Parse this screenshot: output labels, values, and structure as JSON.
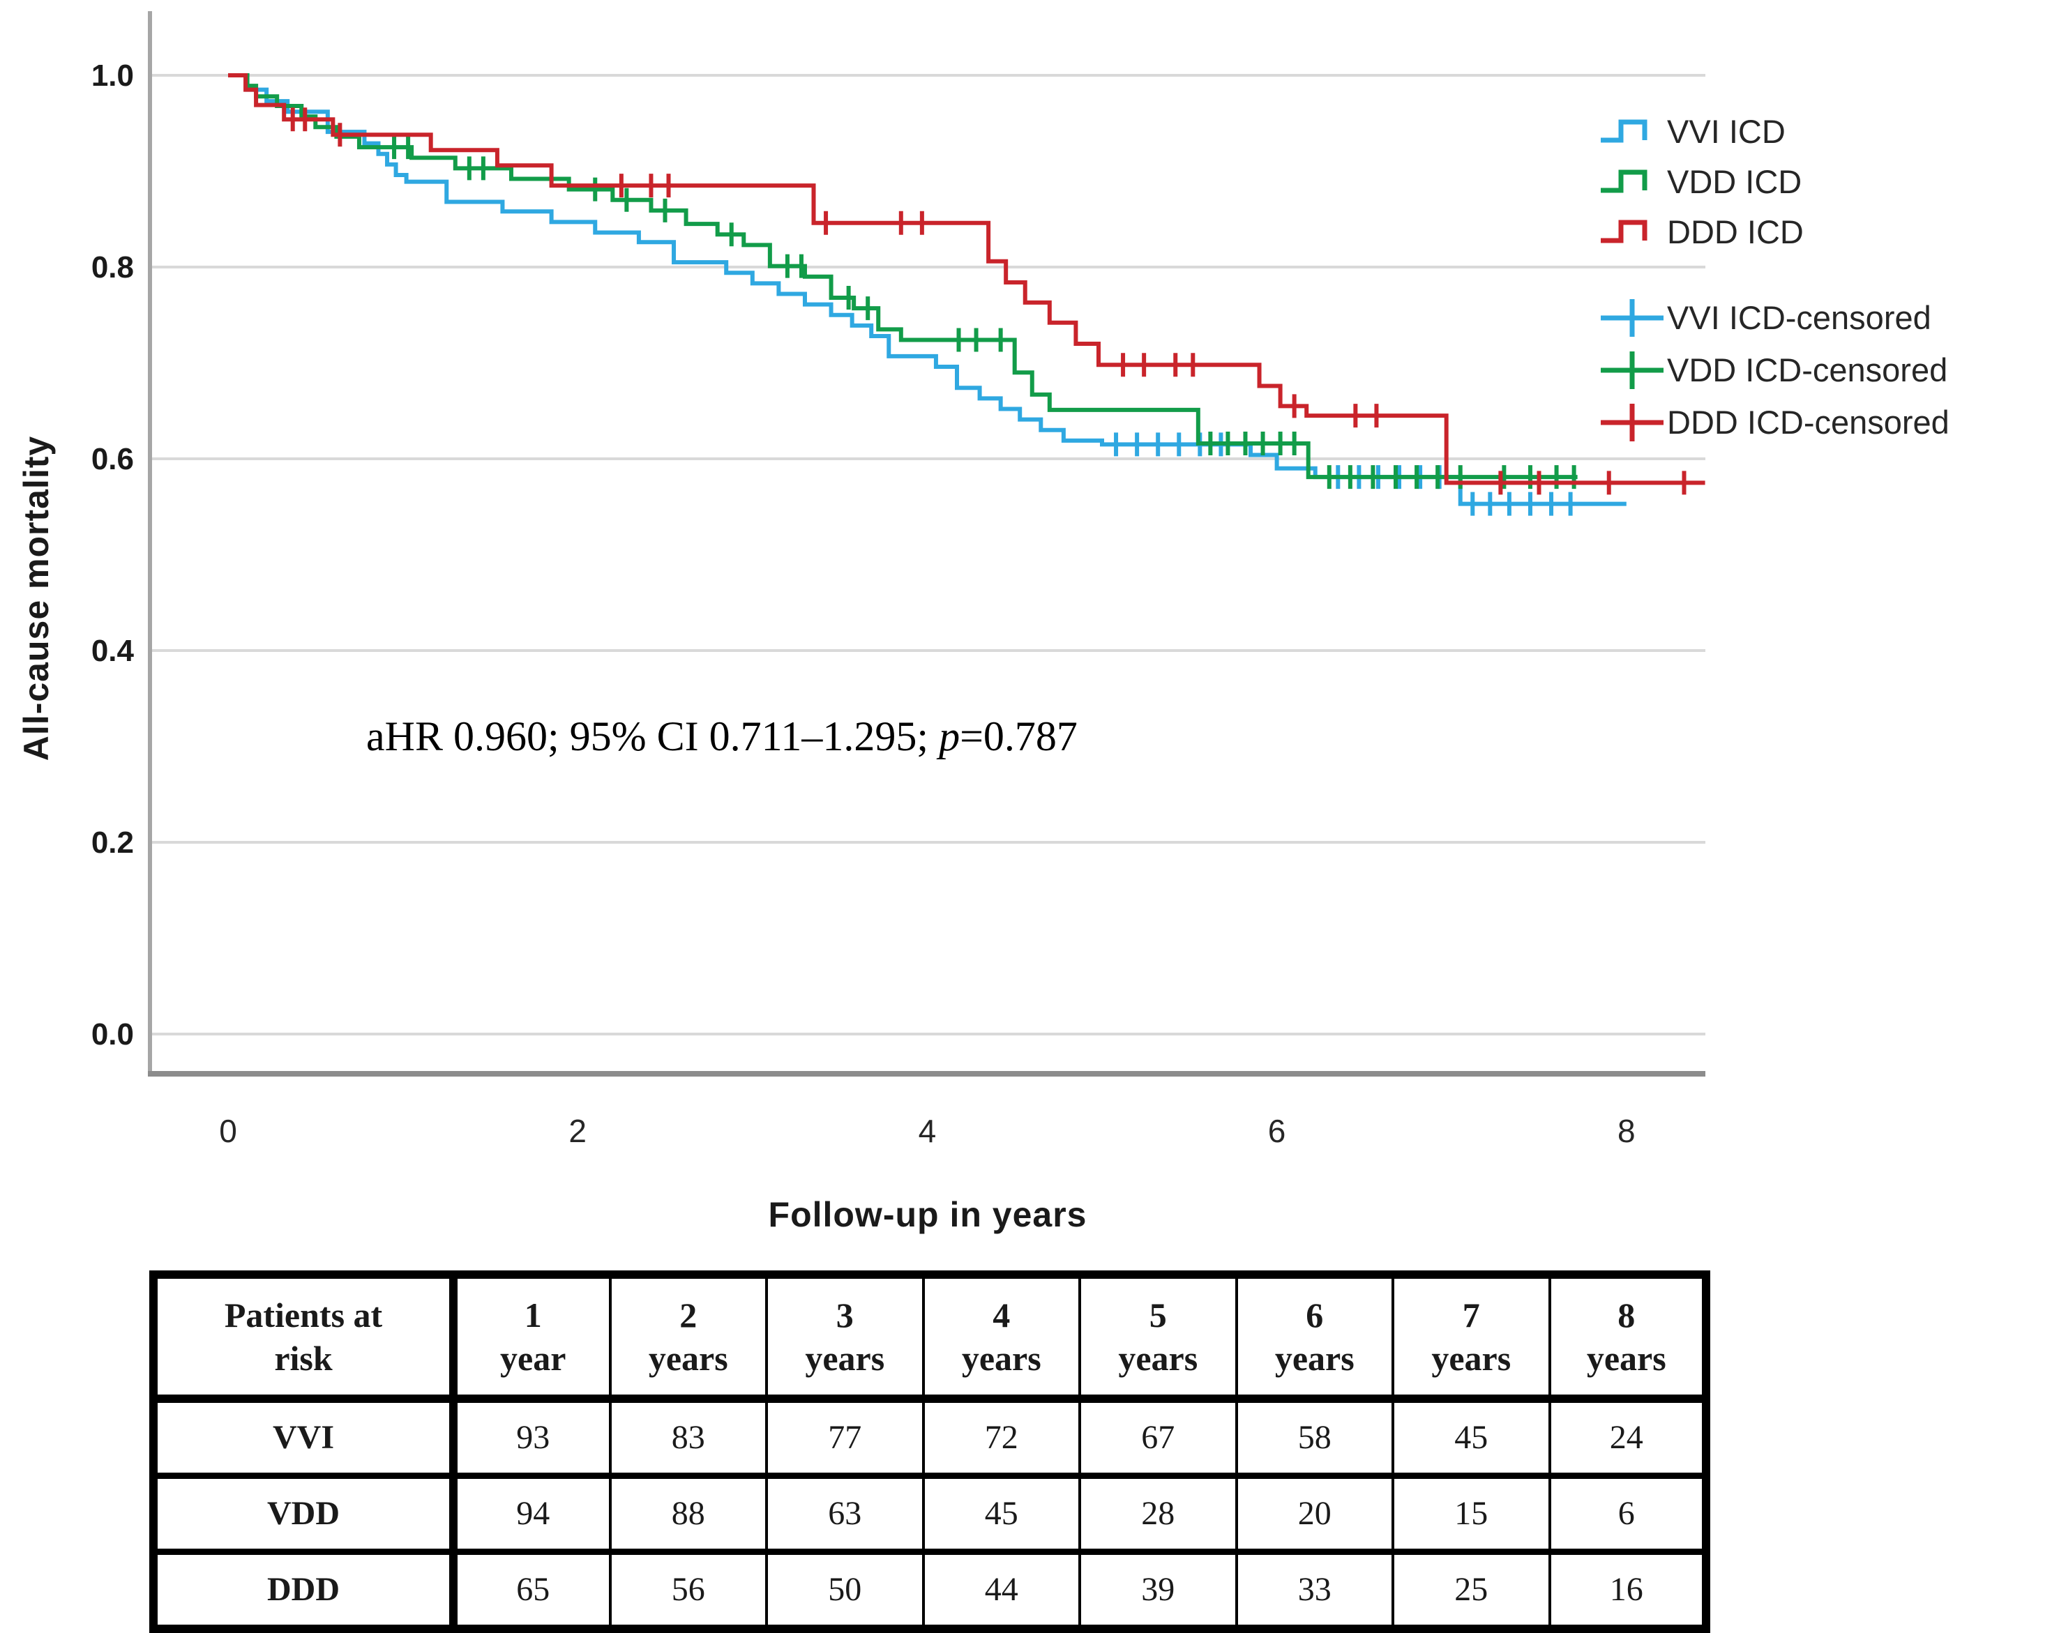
{
  "figure": {
    "ylabel": "All-cause mortality",
    "xlabel": "Follow-up in years",
    "annotation": {
      "full_text": "aHR 0.960; 95% CI 0.711–1.295; p=0.787",
      "text_before": "aHR 0.960; 95% CI 0.711–1.295; ",
      "italic": "p",
      "text_after": "=0.787"
    }
  },
  "chart_data": {
    "type": "line",
    "subtype": "kaplan-meier-step",
    "title": "",
    "xlabel": "Follow-up in years",
    "ylabel": "All-cause mortality",
    "xlim": [
      -0.45,
      8.45
    ],
    "ylim": [
      0.0,
      1.04
    ],
    "x_ticks": [
      0,
      2,
      4,
      6,
      8
    ],
    "y_ticks": [
      "1.0",
      "0.8",
      "0.6",
      "0.4",
      "0.2",
      "0.0"
    ],
    "y_tick_values": [
      1.0,
      0.8,
      0.6,
      0.4,
      0.2,
      0.0
    ],
    "grid": "horizontal-only",
    "legend_position": "right",
    "legend": [
      "VVI ICD",
      "VDD ICD",
      "DDD ICD",
      "VVI ICD-censored",
      "VDD ICD-censored",
      "DDD ICD-censored"
    ],
    "colors": {
      "vvi": "#2FA8E1",
      "vdd": "#129C49",
      "ddd": "#C9242B",
      "gridline": "#D9D9D9",
      "y_axis": "#A6A6A6",
      "x_axis": "#8C8C8C"
    },
    "annotation": "aHR 0.960; 95% CI 0.711–1.295; p=0.787",
    "series": [
      {
        "name": "VVI ICD",
        "color": "#2FA8E1",
        "end_t": 8.0,
        "steps": [
          [
            0,
            1.0
          ],
          [
            0.11,
            0.985
          ],
          [
            0.22,
            0.973
          ],
          [
            0.34,
            0.962
          ],
          [
            0.57,
            0.941
          ],
          [
            0.78,
            0.929
          ],
          [
            0.86,
            0.918
          ],
          [
            0.91,
            0.907
          ],
          [
            0.96,
            0.896
          ],
          [
            1.02,
            0.889
          ],
          [
            1.25,
            0.868
          ],
          [
            1.57,
            0.858
          ],
          [
            1.85,
            0.847
          ],
          [
            2.1,
            0.836
          ],
          [
            2.35,
            0.826
          ],
          [
            2.55,
            0.805
          ],
          [
            2.85,
            0.794
          ],
          [
            3.0,
            0.783
          ],
          [
            3.15,
            0.772
          ],
          [
            3.3,
            0.761
          ],
          [
            3.45,
            0.75
          ],
          [
            3.57,
            0.739
          ],
          [
            3.68,
            0.728
          ],
          [
            3.78,
            0.707
          ],
          [
            4.05,
            0.696
          ],
          [
            4.17,
            0.674
          ],
          [
            4.3,
            0.663
          ],
          [
            4.42,
            0.652
          ],
          [
            4.53,
            0.641
          ],
          [
            4.65,
            0.63
          ],
          [
            4.78,
            0.619
          ],
          [
            5.0,
            0.615
          ],
          [
            5.85,
            0.604
          ],
          [
            6.0,
            0.59
          ],
          [
            6.22,
            0.581
          ],
          [
            7.05,
            0.553
          ]
        ],
        "censored": [
          [
            5.08,
            0.615
          ],
          [
            5.2,
            0.615
          ],
          [
            5.32,
            0.615
          ],
          [
            5.44,
            0.615
          ],
          [
            5.56,
            0.615
          ],
          [
            5.68,
            0.615
          ],
          [
            6.35,
            0.581
          ],
          [
            6.47,
            0.581
          ],
          [
            6.58,
            0.581
          ],
          [
            6.7,
            0.581
          ],
          [
            6.82,
            0.581
          ],
          [
            6.93,
            0.581
          ],
          [
            7.12,
            0.553
          ],
          [
            7.22,
            0.553
          ],
          [
            7.33,
            0.553
          ],
          [
            7.45,
            0.553
          ],
          [
            7.57,
            0.553
          ],
          [
            7.68,
            0.553
          ]
        ]
      },
      {
        "name": "VDD ICD",
        "color": "#129C49",
        "end_t": 7.72,
        "steps": [
          [
            0,
            1.0
          ],
          [
            0.11,
            0.989
          ],
          [
            0.16,
            0.978
          ],
          [
            0.28,
            0.968
          ],
          [
            0.42,
            0.957
          ],
          [
            0.5,
            0.946
          ],
          [
            0.62,
            0.936
          ],
          [
            0.75,
            0.925
          ],
          [
            1.05,
            0.914
          ],
          [
            1.3,
            0.903
          ],
          [
            1.62,
            0.892
          ],
          [
            1.95,
            0.881
          ],
          [
            2.2,
            0.87
          ],
          [
            2.42,
            0.859
          ],
          [
            2.62,
            0.845
          ],
          [
            2.8,
            0.834
          ],
          [
            2.95,
            0.823
          ],
          [
            3.1,
            0.801
          ],
          [
            3.3,
            0.79
          ],
          [
            3.45,
            0.768
          ],
          [
            3.58,
            0.757
          ],
          [
            3.72,
            0.735
          ],
          [
            3.85,
            0.724
          ],
          [
            4.5,
            0.69
          ],
          [
            4.6,
            0.667
          ],
          [
            4.7,
            0.651
          ],
          [
            5.55,
            0.616
          ],
          [
            6.18,
            0.581
          ]
        ],
        "censored": [
          [
            0.95,
            0.925
          ],
          [
            1.03,
            0.925
          ],
          [
            1.38,
            0.903
          ],
          [
            1.46,
            0.903
          ],
          [
            2.1,
            0.881
          ],
          [
            2.28,
            0.87
          ],
          [
            2.5,
            0.859
          ],
          [
            2.88,
            0.834
          ],
          [
            3.2,
            0.801
          ],
          [
            3.28,
            0.801
          ],
          [
            3.55,
            0.768
          ],
          [
            3.66,
            0.757
          ],
          [
            4.18,
            0.724
          ],
          [
            4.28,
            0.724
          ],
          [
            4.42,
            0.724
          ],
          [
            5.62,
            0.616
          ],
          [
            5.72,
            0.616
          ],
          [
            5.82,
            0.616
          ],
          [
            5.92,
            0.616
          ],
          [
            6.02,
            0.616
          ],
          [
            6.1,
            0.616
          ],
          [
            6.3,
            0.581
          ],
          [
            6.42,
            0.581
          ],
          [
            6.55,
            0.581
          ],
          [
            6.68,
            0.581
          ],
          [
            6.8,
            0.581
          ],
          [
            6.92,
            0.581
          ],
          [
            7.05,
            0.581
          ],
          [
            7.3,
            0.581
          ],
          [
            7.45,
            0.581
          ],
          [
            7.6,
            0.581
          ],
          [
            7.7,
            0.581
          ]
        ]
      },
      {
        "name": "DDD ICD",
        "color": "#C9242B",
        "end_t": 8.45,
        "steps": [
          [
            0,
            1.0
          ],
          [
            0.1,
            0.985
          ],
          [
            0.16,
            0.969
          ],
          [
            0.32,
            0.954
          ],
          [
            0.6,
            0.938
          ],
          [
            1.16,
            0.922
          ],
          [
            1.54,
            0.906
          ],
          [
            1.85,
            0.885
          ],
          [
            3.35,
            0.846
          ],
          [
            4.35,
            0.806
          ],
          [
            4.45,
            0.784
          ],
          [
            4.56,
            0.763
          ],
          [
            4.7,
            0.742
          ],
          [
            4.85,
            0.72
          ],
          [
            4.98,
            0.698
          ],
          [
            5.9,
            0.676
          ],
          [
            6.02,
            0.655
          ],
          [
            6.17,
            0.645
          ],
          [
            6.97,
            0.575
          ]
        ],
        "censored": [
          [
            0.37,
            0.954
          ],
          [
            0.44,
            0.954
          ],
          [
            0.64,
            0.938
          ],
          [
            2.25,
            0.885
          ],
          [
            2.42,
            0.885
          ],
          [
            2.52,
            0.885
          ],
          [
            3.42,
            0.846
          ],
          [
            3.85,
            0.846
          ],
          [
            3.97,
            0.846
          ],
          [
            5.12,
            0.698
          ],
          [
            5.24,
            0.698
          ],
          [
            5.42,
            0.698
          ],
          [
            5.52,
            0.698
          ],
          [
            6.1,
            0.655
          ],
          [
            6.45,
            0.645
          ],
          [
            6.57,
            0.645
          ],
          [
            7.28,
            0.575
          ],
          [
            7.5,
            0.575
          ],
          [
            7.9,
            0.575
          ],
          [
            8.33,
            0.575
          ]
        ]
      }
    ]
  },
  "risk_table": {
    "corner_label_lines": [
      "Patients at",
      "risk"
    ],
    "corner_label": "Patients at risk",
    "columns": [
      {
        "value": "1",
        "unit": "year"
      },
      {
        "value": "2",
        "unit": "years"
      },
      {
        "value": "3",
        "unit": "years"
      },
      {
        "value": "4",
        "unit": "years"
      },
      {
        "value": "5",
        "unit": "years"
      },
      {
        "value": "6",
        "unit": "years"
      },
      {
        "value": "7",
        "unit": "years"
      },
      {
        "value": "8",
        "unit": "years"
      }
    ],
    "rows": [
      {
        "label": "VVI",
        "values": [
          "93",
          "83",
          "77",
          "72",
          "67",
          "58",
          "45",
          "24"
        ]
      },
      {
        "label": "VDD",
        "values": [
          "94",
          "88",
          "63",
          "45",
          "28",
          "20",
          "15",
          "6"
        ]
      },
      {
        "label": "DDD",
        "values": [
          "65",
          "56",
          "50",
          "44",
          "39",
          "33",
          "25",
          "16"
        ]
      }
    ]
  }
}
